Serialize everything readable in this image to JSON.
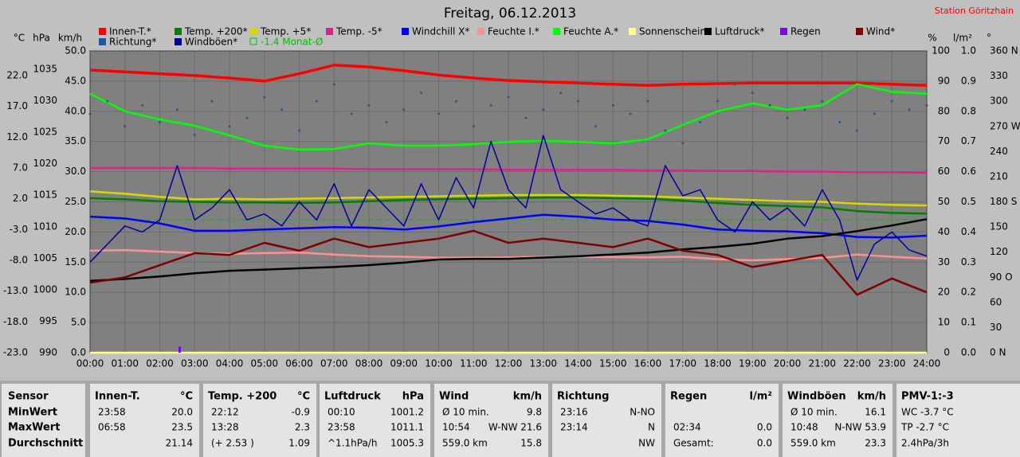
{
  "chart_data": {
    "type": "line",
    "title": "Freitag, 06.12.2013",
    "station": "Station Göritzhain",
    "grid": true,
    "x": [
      0,
      1,
      2,
      3,
      4,
      5,
      6,
      7,
      8,
      9,
      10,
      11,
      12,
      13,
      14,
      15,
      16,
      17,
      18,
      19,
      20,
      21,
      22,
      23,
      24
    ],
    "xlim": [
      0,
      24
    ],
    "xticks": [
      {
        "value": 0,
        "label": "00:00"
      },
      {
        "value": 1,
        "label": "01:00"
      },
      {
        "value": 2,
        "label": "02:00"
      },
      {
        "value": 3,
        "label": "03:00"
      },
      {
        "value": 4,
        "label": "04:00"
      },
      {
        "value": 5,
        "label": "05:00"
      },
      {
        "value": 6,
        "label": "06:00"
      },
      {
        "value": 7,
        "label": "07:00"
      },
      {
        "value": 8,
        "label": "08:00"
      },
      {
        "value": 9,
        "label": "09:00"
      },
      {
        "value": 10,
        "label": "10:00"
      },
      {
        "value": 11,
        "label": "11:00"
      },
      {
        "value": 12,
        "label": "12:00"
      },
      {
        "value": 13,
        "label": "13:00"
      },
      {
        "value": 14,
        "label": "14:00"
      },
      {
        "value": 15,
        "label": "15:00"
      },
      {
        "value": 16,
        "label": "16:00"
      },
      {
        "value": 17,
        "label": "17:00"
      },
      {
        "value": 18,
        "label": "18:00"
      },
      {
        "value": 19,
        "label": "19:00"
      },
      {
        "value": 20,
        "label": "20:00"
      },
      {
        "value": 21,
        "label": "21:00"
      },
      {
        "value": 22,
        "label": "22:00"
      },
      {
        "value": 23,
        "label": "23:00"
      },
      {
        "value": 24,
        "label": "24:00"
      }
    ],
    "yaxes": {
      "c": {
        "label": "°C",
        "ylim": [
          -23,
          26
        ],
        "yticks": [
          {
            "value": -23,
            "label": "-23.0"
          },
          {
            "value": -18,
            "label": "-18.0"
          },
          {
            "value": -13,
            "label": "-13.0"
          },
          {
            "value": -8,
            "label": "-8.0"
          },
          {
            "value": -3,
            "label": "-3.0"
          },
          {
            "value": 2,
            "label": "2.0"
          },
          {
            "value": 7,
            "label": "7.0"
          },
          {
            "value": 12,
            "label": "12.0"
          },
          {
            "value": 17,
            "label": "17.0"
          },
          {
            "value": 22,
            "label": "22.0"
          }
        ]
      },
      "p": {
        "label": "hPa",
        "ylim": [
          990,
          1037.9
        ],
        "yticks": [
          990,
          995,
          1000,
          1005,
          1010,
          1015,
          1020,
          1025,
          1030,
          1035
        ]
      },
      "w": {
        "label": "km/h",
        "ylim": [
          0,
          50
        ],
        "yticks": [
          {
            "value": 0,
            "label": "0.0"
          },
          {
            "value": 5,
            "label": "5.0"
          },
          {
            "value": 10,
            "label": "10.0"
          },
          {
            "value": 15,
            "label": "15.0"
          },
          {
            "value": 20,
            "label": "20.0"
          },
          {
            "value": 25,
            "label": "25.0"
          },
          {
            "value": 30,
            "label": "30.0"
          },
          {
            "value": 35,
            "label": "35.0"
          },
          {
            "value": 40,
            "label": "40.0"
          },
          {
            "value": 45,
            "label": "45.0"
          },
          {
            "value": 50,
            "label": "50.0"
          }
        ]
      },
      "h": {
        "label": "%",
        "ylim": [
          0,
          100
        ],
        "yticks": [
          0,
          10,
          20,
          30,
          40,
          50,
          60,
          70,
          80,
          90,
          100
        ]
      },
      "r": {
        "label": "l/m²",
        "ylim": [
          0,
          1
        ],
        "yticks": [
          {
            "value": 0,
            "label": "0.0"
          },
          {
            "value": 0.1,
            "label": "0.1"
          },
          {
            "value": 0.2,
            "label": "0.2"
          },
          {
            "value": 0.3,
            "label": "0.3"
          },
          {
            "value": 0.4,
            "label": "0.4"
          },
          {
            "value": 0.5,
            "label": "0.5"
          },
          {
            "value": 0.6,
            "label": "0.6"
          },
          {
            "value": 0.7,
            "label": "0.7"
          },
          {
            "value": 0.8,
            "label": "0.8"
          },
          {
            "value": 0.9,
            "label": "0.9"
          },
          {
            "value": 1,
            "label": "1.0"
          }
        ]
      },
      "d": {
        "label": "°",
        "ylim": [
          0,
          360
        ],
        "yticks": [
          {
            "value": 0,
            "label": "0 N"
          },
          30,
          60,
          {
            "value": 90,
            "label": "90 O"
          },
          120,
          150,
          {
            "value": 180,
            "label": "180 S"
          },
          210,
          240,
          {
            "value": 270,
            "label": "270 W"
          },
          300,
          330,
          {
            "value": 360,
            "label": "360 N"
          }
        ]
      }
    },
    "series": [
      {
        "name": "Innen-T.*",
        "color": "#ff0000",
        "axis": "c",
        "values": [
          22.9,
          22.6,
          22.3,
          22.0,
          21.6,
          21.1,
          22.3,
          23.7,
          23.4,
          22.8,
          22.1,
          21.6,
          21.2,
          21.0,
          20.8,
          20.6,
          20.4,
          20.6,
          20.7,
          20.8,
          20.8,
          20.8,
          20.8,
          20.6,
          20.4
        ]
      },
      {
        "name": "Temp. +200*",
        "color": "#008000",
        "axis": "c",
        "values": [
          2.1,
          1.9,
          1.6,
          1.5,
          1.4,
          1.4,
          1.3,
          1.4,
          1.6,
          1.8,
          1.9,
          2.0,
          2.1,
          2.2,
          2.2,
          2.1,
          2.0,
          1.7,
          1.3,
          1.0,
          0.8,
          0.6,
          0.0,
          -0.3,
          -0.4
        ]
      },
      {
        "name": "Temp. +5*",
        "color": "#d8d800",
        "axis": "c",
        "values": [
          3.2,
          2.8,
          2.3,
          1.9,
          2.0,
          1.9,
          2.0,
          2.1,
          2.2,
          2.3,
          2.4,
          2.5,
          2.6,
          2.6,
          2.6,
          2.5,
          2.4,
          2.2,
          2.0,
          1.8,
          1.6,
          1.5,
          1.2,
          1.0,
          0.9
        ]
      },
      {
        "name": "Temp. -5*",
        "color": "#e0208c",
        "axis": "c",
        "values": [
          7.0,
          7.0,
          7.0,
          7.0,
          6.9,
          6.9,
          6.9,
          6.9,
          6.8,
          6.8,
          6.8,
          6.8,
          6.7,
          6.7,
          6.7,
          6.7,
          6.6,
          6.6,
          6.5,
          6.5,
          6.4,
          6.4,
          6.3,
          6.3,
          6.2
        ]
      },
      {
        "name": "Windchill X*",
        "color": "#0000ff",
        "axis": "c",
        "values": [
          -0.9,
          -1.2,
          -2.0,
          -3.2,
          -3.2,
          -3.0,
          -2.8,
          -2.6,
          -2.7,
          -3.0,
          -2.5,
          -1.8,
          -1.2,
          -0.6,
          -0.9,
          -1.4,
          -1.6,
          -2.2,
          -3.0,
          -3.2,
          -3.3,
          -3.6,
          -4.2,
          -4.3,
          -4.0
        ]
      },
      {
        "name": "Feuchte I.*",
        "color": "#ff9090",
        "axis": "h",
        "values": [
          33.8,
          34.0,
          33.5,
          33.0,
          32.8,
          33.0,
          33.2,
          32.5,
          32.0,
          31.8,
          31.5,
          31.5,
          31.6,
          31.8,
          31.8,
          31.7,
          31.6,
          31.8,
          31.0,
          30.6,
          31.0,
          31.4,
          32.5,
          31.8,
          31.2
        ]
      },
      {
        "name": "Feuchte A.*",
        "color": "#00ff00",
        "axis": "h",
        "values": [
          85.8,
          80.0,
          77.3,
          75.2,
          72.0,
          68.6,
          67.3,
          67.5,
          69.4,
          68.6,
          68.6,
          69.1,
          69.9,
          70.2,
          69.9,
          69.4,
          70.7,
          75.5,
          80.0,
          82.6,
          80.5,
          82.0,
          89.0,
          86.5,
          85.8
        ]
      },
      {
        "name": "Sonnenschein",
        "color": "#ffff80",
        "axis": "h",
        "values": [
          0,
          0,
          0,
          0,
          0,
          0,
          0,
          0,
          0,
          0,
          0,
          0,
          0,
          0,
          0,
          0,
          0,
          0,
          0,
          0,
          0,
          0,
          0,
          0,
          0
        ]
      },
      {
        "name": "Luftdruck*",
        "color": "#000000",
        "axis": "p",
        "values": [
          1001.4,
          1001.7,
          1002.1,
          1002.6,
          1003.0,
          1003.2,
          1003.4,
          1003.6,
          1003.9,
          1004.3,
          1004.8,
          1004.9,
          1004.9,
          1005.1,
          1005.3,
          1005.6,
          1005.9,
          1006.4,
          1006.8,
          1007.3,
          1008.1,
          1008.5,
          1009.3,
          1010.2,
          1011.2
        ]
      },
      {
        "name": "Regen",
        "color": "#8000ff",
        "axis": "r",
        "type": "bar",
        "x": [
          2.57
        ],
        "values": [
          0.02
        ]
      },
      {
        "name": "Wind*",
        "color": "#800000",
        "axis": "w",
        "values": [
          11.6,
          12.5,
          14.5,
          16.5,
          16.2,
          18.2,
          16.9,
          18.9,
          17.5,
          18.2,
          18.9,
          20.2,
          18.2,
          18.9,
          18.2,
          17.5,
          18.9,
          16.9,
          16.2,
          14.2,
          15.2,
          16.2,
          9.6,
          12.3,
          10.0
        ]
      },
      {
        "name": "Richtung*",
        "color": "#1e5a96",
        "axis": "d",
        "type": "scatter",
        "x": [
          0,
          0.5,
          1,
          1.5,
          2,
          2.5,
          3,
          3.5,
          4,
          4.5,
          5,
          5.5,
          6,
          6.5,
          7,
          7.5,
          8,
          8.5,
          9,
          9.5,
          10,
          10.5,
          11,
          11.5,
          12,
          12.5,
          13,
          13.5,
          14,
          14.5,
          15,
          15.5,
          16,
          16.5,
          17,
          17.5,
          18,
          18.5,
          19,
          19.5,
          20,
          20.5,
          21,
          21.5,
          22,
          22.5,
          23,
          23.5,
          24
        ],
        "values": [
          285,
          300,
          270,
          295,
          275,
          290,
          260,
          300,
          270,
          280,
          305,
          290,
          265,
          300,
          320,
          285,
          295,
          275,
          290,
          310,
          285,
          300,
          270,
          295,
          305,
          280,
          290,
          310,
          300,
          270,
          295,
          285,
          300,
          265,
          250,
          275,
          300,
          320,
          310,
          295,
          280,
          290,
          300,
          275,
          265,
          285,
          300,
          290,
          295
        ]
      },
      {
        "name": "Windböen*",
        "color": "#0000a0",
        "axis": "w",
        "x": [
          0,
          0.5,
          1,
          1.5,
          2,
          2.5,
          3,
          3.5,
          4,
          4.5,
          5,
          5.5,
          6,
          6.5,
          7,
          7.5,
          8,
          8.5,
          9,
          9.5,
          10,
          10.5,
          11,
          11.5,
          12,
          12.5,
          13,
          13.5,
          14,
          14.5,
          15,
          15.5,
          16,
          16.5,
          17,
          17.5,
          18,
          18.5,
          19,
          19.5,
          20,
          20.5,
          21,
          21.5,
          22,
          22.5,
          23,
          23.5,
          24
        ],
        "values": [
          15,
          18,
          21,
          20,
          22,
          31,
          22,
          24,
          27,
          22,
          23,
          21,
          25,
          22,
          28,
          21,
          27,
          24,
          21,
          28,
          22,
          29,
          24,
          35,
          27,
          24,
          36,
          27,
          25,
          23,
          24,
          22,
          21,
          31,
          26,
          27,
          22,
          20,
          25,
          22,
          24,
          21,
          27,
          22,
          12,
          18,
          20,
          17,
          16
        ]
      }
    ],
    "reference": {
      "name": "-1.4 Monat-Ø",
      "value": -1.4,
      "color": "#00c000",
      "axis": "c"
    }
  },
  "table": {
    "row_labels": [
      "Sensor",
      "MinWert",
      "MaxWert",
      "Durchschnitt"
    ],
    "columns": [
      {
        "header": "Innen-T.",
        "unit": "°C",
        "rows": [
          [
            "23:58",
            "20.0"
          ],
          [
            "06:58",
            "23.5"
          ],
          [
            null,
            "21.14"
          ]
        ]
      },
      {
        "header": "Temp. +200",
        "unit": "°C",
        "rows": [
          [
            "22:12",
            "-0.9"
          ],
          [
            "13:28",
            "2.3"
          ],
          [
            "(+ 2.53 )",
            "1.09"
          ]
        ]
      },
      {
        "header": "Luftdruck",
        "unit": "hPa",
        "rows": [
          [
            "00:10",
            "1001.2"
          ],
          [
            "23:58",
            "1011.1"
          ],
          [
            "^1.1hPa/h",
            "1005.3"
          ]
        ]
      },
      {
        "header": "Wind",
        "unit": "km/h",
        "rows": [
          [
            "Ø 10 min.",
            "9.8"
          ],
          [
            "10:54",
            "W-NW 21.6"
          ],
          [
            "559.0 km",
            "15.8"
          ]
        ]
      },
      {
        "header": "Richtung",
        "rows": [
          [
            "23:16",
            "N-NO"
          ],
          [
            "23:14",
            "N"
          ],
          [
            null,
            "NW"
          ]
        ]
      },
      {
        "header": "Regen",
        "unit": "l/m²",
        "rows": [
          [
            null,
            null
          ],
          [
            "02:34",
            "0.0"
          ],
          [
            "Gesamt:",
            "0.0"
          ]
        ]
      },
      {
        "header": "Windböen",
        "unit": "km/h",
        "rows": [
          [
            "Ø 10 min.",
            "16.1"
          ],
          [
            "10:48",
            "N-NW 53.9"
          ],
          [
            "559.0 km",
            "23.3"
          ]
        ]
      },
      {
        "header": "PMV-1:-3",
        "rows": [
          [
            "WC -3.7 °C"
          ],
          [
            "TP -2.7 °C"
          ],
          [
            "2.4hPa/3h"
          ]
        ]
      }
    ]
  }
}
